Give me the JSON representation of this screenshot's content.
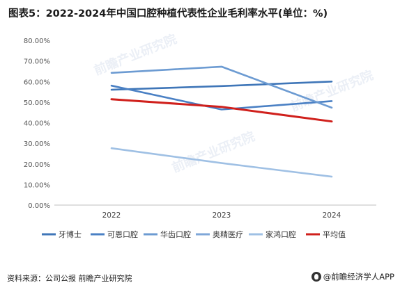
{
  "title": "图表5：2022-2024年中国口腔种植代表性企业毛利率水平(单位：%)",
  "footer": {
    "source": "资料来源：公司公报  前瞻产业研究院",
    "brand": "@前瞻经济学人APP"
  },
  "watermark": "前瞻产业研究院",
  "chart_data": {
    "type": "line",
    "title": "图表5：2022-2024年中国口腔种植代表性企业毛利率水平(单位：%)",
    "xlabel": "",
    "ylabel": "",
    "x": [
      "2022",
      "2023",
      "2024"
    ],
    "ylim": [
      0,
      80
    ],
    "yticks": [
      "0.00%",
      "10.00%",
      "20.00%",
      "30.00%",
      "40.00%",
      "50.00%",
      "60.00%",
      "70.00%",
      "80.00%"
    ],
    "grid": false,
    "legend_position": "bottom",
    "series": [
      {
        "name": "牙博士",
        "values": [
          56.0,
          57.8,
          60.0
        ],
        "color": "#3f76b8"
      },
      {
        "name": "可恩口腔",
        "values": [
          58.0,
          46.4,
          50.5
        ],
        "color": "#4a80c4"
      },
      {
        "name": "华齿口腔",
        "values": [
          64.2,
          67.2,
          47.3
        ],
        "color": "#6c9bd2"
      },
      {
        "name": "奥精医疗",
        "values": [
          null,
          null,
          null
        ],
        "color": "#7fa7d8"
      },
      {
        "name": "家鸿口腔",
        "values": [
          27.6,
          20.4,
          13.8
        ],
        "color": "#9fc0e4"
      },
      {
        "name": "平均值",
        "values": [
          51.4,
          47.7,
          40.6
        ],
        "color": "#d0201c"
      }
    ]
  }
}
